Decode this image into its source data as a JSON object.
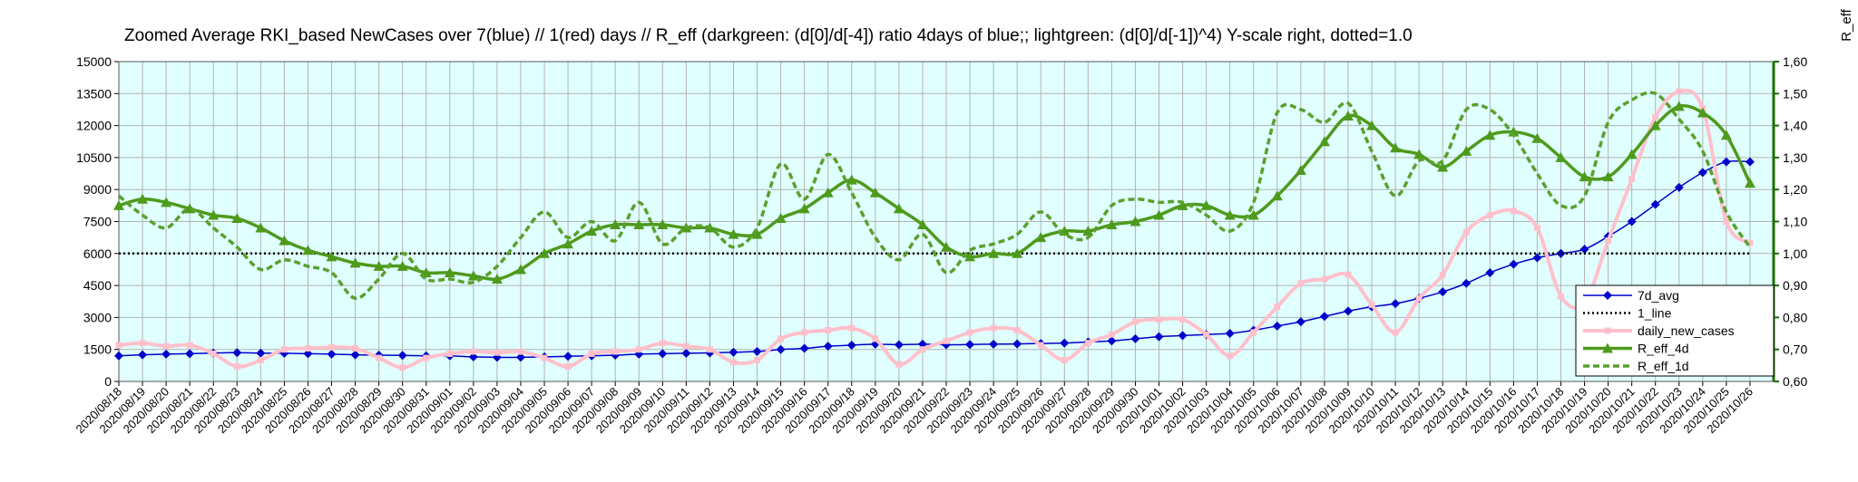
{
  "chart_data": {
    "type": "line",
    "title": "Zoomed Average RKI_based NewCases over 7(blue) // 1(red) days //  R_eff (darkgreen: (d[0]/d[-4]) ratio 4days of blue;; lightgreen: (d[0]/d[-1])^4) Y-scale right, dotted=1.0",
    "y2_label": "R_eff",
    "categories": [
      "2020/08/18",
      "2020/08/19",
      "2020/08/20",
      "2020/08/21",
      "2020/08/22",
      "2020/08/23",
      "2020/08/24",
      "2020/08/25",
      "2020/08/26",
      "2020/08/27",
      "2020/08/28",
      "2020/08/29",
      "2020/08/30",
      "2020/08/31",
      "2020/09/01",
      "2020/09/02",
      "2020/09/03",
      "2020/09/04",
      "2020/09/05",
      "2020/09/06",
      "2020/09/07",
      "2020/09/08",
      "2020/09/09",
      "2020/09/10",
      "2020/09/11",
      "2020/09/12",
      "2020/09/13",
      "2020/09/14",
      "2020/09/15",
      "2020/09/16",
      "2020/09/17",
      "2020/09/18",
      "2020/09/19",
      "2020/09/20",
      "2020/09/21",
      "2020/09/22",
      "2020/09/23",
      "2020/09/24",
      "2020/09/25",
      "2020/09/26",
      "2020/09/27",
      "2020/09/28",
      "2020/09/29",
      "2020/09/30",
      "2020/10/01",
      "2020/10/02",
      "2020/10/03",
      "2020/10/04",
      "2020/10/05",
      "2020/10/06",
      "2020/10/07",
      "2020/10/08",
      "2020/10/09",
      "2020/10/10",
      "2020/10/11",
      "2020/10/12",
      "2020/10/13",
      "2020/10/14",
      "2020/10/15",
      "2020/10/16",
      "2020/10/17",
      "2020/10/18",
      "2020/10/19",
      "2020/10/20",
      "2020/10/21",
      "2020/10/22",
      "2020/10/23",
      "2020/10/24",
      "2020/10/25",
      "2020/10/26"
    ],
    "series": [
      {
        "name": "7d_avg",
        "color": "#0000cc",
        "width": 1.5,
        "marker": "diamond",
        "line_style": "solid",
        "values": [
          1200,
          1250,
          1280,
          1300,
          1330,
          1350,
          1330,
          1320,
          1300,
          1280,
          1250,
          1230,
          1220,
          1200,
          1200,
          1150,
          1130,
          1130,
          1150,
          1180,
          1200,
          1230,
          1280,
          1300,
          1320,
          1340,
          1370,
          1400,
          1500,
          1550,
          1650,
          1700,
          1750,
          1720,
          1750,
          1720,
          1730,
          1750,
          1760,
          1780,
          1800,
          1850,
          1900,
          2000,
          2100,
          2150,
          2200,
          2250,
          2400,
          2600,
          2800,
          3050,
          3300,
          3500,
          3650,
          3900,
          4200,
          4600,
          5100,
          5500,
          5800,
          6000,
          6200,
          6800,
          7500,
          8300,
          9100,
          9800,
          10300,
          10300
        ]
      },
      {
        "name": "1_line",
        "color": "#000000",
        "width": 2.5,
        "marker": "none",
        "line_style": "dotted",
        "axis": "y2",
        "values": [
          1,
          1,
          1,
          1,
          1,
          1,
          1,
          1,
          1,
          1,
          1,
          1,
          1,
          1,
          1,
          1,
          1,
          1,
          1,
          1,
          1,
          1,
          1,
          1,
          1,
          1,
          1,
          1,
          1,
          1,
          1,
          1,
          1,
          1,
          1,
          1,
          1,
          1,
          1,
          1,
          1,
          1,
          1,
          1,
          1,
          1,
          1,
          1,
          1,
          1,
          1,
          1,
          1,
          1,
          1,
          1,
          1,
          1,
          1,
          1,
          1,
          1,
          1,
          1,
          1,
          1,
          1,
          1,
          1,
          1
        ]
      },
      {
        "name": "daily_new_cases",
        "color": "#ffc0cb",
        "width": 4,
        "marker": "square",
        "line_style": "solid",
        "values": [
          1700,
          1800,
          1650,
          1700,
          1300,
          700,
          1000,
          1500,
          1550,
          1600,
          1550,
          1100,
          650,
          1100,
          1300,
          1400,
          1350,
          1400,
          1100,
          700,
          1300,
          1400,
          1500,
          1800,
          1650,
          1500,
          900,
          1000,
          2000,
          2300,
          2400,
          2500,
          2000,
          800,
          1500,
          1900,
          2300,
          2500,
          2400,
          1700,
          1000,
          1800,
          2200,
          2800,
          2900,
          2900,
          2200,
          1200,
          2300,
          3500,
          4600,
          4800,
          5000,
          3600,
          2300,
          3900,
          5000,
          7000,
          7800,
          8000,
          7200,
          4000,
          3700,
          6600,
          9500,
          12400,
          13600,
          12800,
          7500,
          6500
        ]
      },
      {
        "name": "R_eff_4d",
        "color": "#4e9a1c",
        "width": 3.5,
        "marker": "triangle",
        "line_style": "solid",
        "axis": "y2",
        "values": [
          1.15,
          1.17,
          1.16,
          1.14,
          1.12,
          1.11,
          1.08,
          1.04,
          1.01,
          0.99,
          0.97,
          0.96,
          0.96,
          0.94,
          0.94,
          0.93,
          0.92,
          0.95,
          1.0,
          1.03,
          1.07,
          1.09,
          1.09,
          1.09,
          1.08,
          1.08,
          1.06,
          1.06,
          1.11,
          1.14,
          1.19,
          1.23,
          1.19,
          1.14,
          1.09,
          1.02,
          0.99,
          1.0,
          1.0,
          1.05,
          1.07,
          1.07,
          1.09,
          1.1,
          1.12,
          1.15,
          1.15,
          1.12,
          1.12,
          1.18,
          1.26,
          1.35,
          1.43,
          1.4,
          1.33,
          1.31,
          1.27,
          1.32,
          1.37,
          1.38,
          1.36,
          1.3,
          1.24,
          1.24,
          1.31,
          1.4,
          1.46,
          1.44,
          1.37,
          1.22
        ]
      },
      {
        "name": "R_eff_1d",
        "color": "#5aa02c",
        "width": 3.5,
        "marker": "none",
        "line_style": "dashed",
        "axis": "y2",
        "values": [
          1.18,
          1.12,
          1.08,
          1.14,
          1.08,
          1.02,
          0.95,
          0.98,
          0.96,
          0.94,
          0.86,
          0.92,
          1.0,
          0.92,
          0.92,
          0.91,
          0.96,
          1.05,
          1.13,
          1.05,
          1.1,
          1.04,
          1.16,
          1.03,
          1.08,
          1.08,
          1.02,
          1.08,
          1.28,
          1.17,
          1.31,
          1.19,
          1.05,
          0.98,
          1.06,
          0.94,
          1.01,
          1.03,
          1.06,
          1.13,
          1.06,
          1.05,
          1.15,
          1.17,
          1.16,
          1.16,
          1.12,
          1.07,
          1.16,
          1.44,
          1.45,
          1.41,
          1.47,
          1.32,
          1.18,
          1.29,
          1.29,
          1.45,
          1.45,
          1.37,
          1.25,
          1.15,
          1.18,
          1.41,
          1.48,
          1.5,
          1.42,
          1.32,
          1.13,
          1.02
        ]
      }
    ],
    "ylim": [
      0,
      15000
    ],
    "yticks": [
      0,
      1500,
      3000,
      4500,
      6000,
      7500,
      9000,
      10500,
      12000,
      13500,
      15000
    ],
    "y2lim": [
      0.6,
      1.6
    ],
    "y2ticks": [
      {
        "value": 0.6,
        "label": "0,60"
      },
      {
        "value": 0.7,
        "label": "0,70"
      },
      {
        "value": 0.8,
        "label": "0,80"
      },
      {
        "value": 0.9,
        "label": "0,90"
      },
      {
        "value": 1.0,
        "label": "1,00"
      },
      {
        "value": 1.1,
        "label": "1,10"
      },
      {
        "value": 1.2,
        "label": "1,20"
      },
      {
        "value": 1.3,
        "label": "1,30"
      },
      {
        "value": 1.4,
        "label": "1,40"
      },
      {
        "value": 1.5,
        "label": "1,50"
      },
      {
        "value": 1.6,
        "label": "1,60"
      }
    ],
    "y2_color": "#1e6b0a",
    "plot_background": "#e0ffff",
    "grid": true,
    "legend": "lower right"
  }
}
